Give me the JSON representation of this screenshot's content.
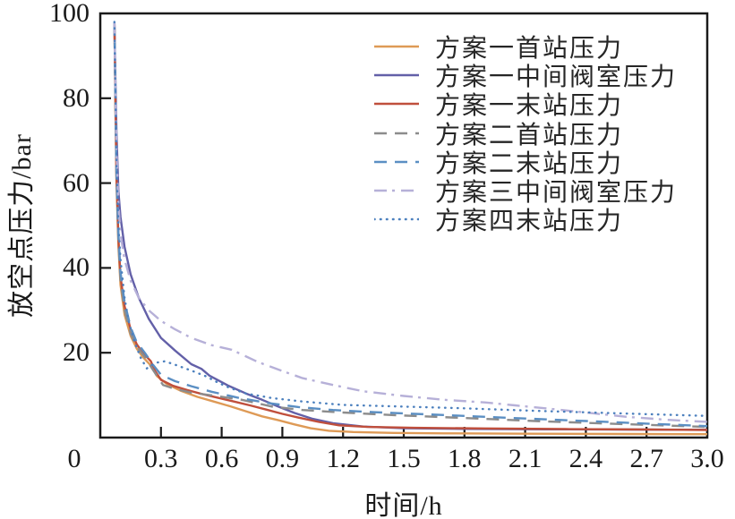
{
  "figure": {
    "background": "#ffffff",
    "axis_color": "#1a1a1a",
    "text_color": "#262626"
  },
  "chart_data": {
    "type": "line",
    "title": "",
    "xlabel": "时间/h",
    "ylabel": "放空点压力/bar",
    "xlim": [
      0,
      3.0
    ],
    "ylim": [
      0,
      100
    ],
    "grid": false,
    "legend_position": "upper-right-inside",
    "x_ticks": [
      {
        "v": 0,
        "label": "0"
      },
      {
        "v": 0.3,
        "label": "0.3"
      },
      {
        "v": 0.6,
        "label": "0.6"
      },
      {
        "v": 0.9,
        "label": "0.9"
      },
      {
        "v": 1.2,
        "label": "1.2"
      },
      {
        "v": 1.5,
        "label": "1.5"
      },
      {
        "v": 1.8,
        "label": "1.8"
      },
      {
        "v": 2.1,
        "label": "2.1"
      },
      {
        "v": 2.4,
        "label": "2.4"
      },
      {
        "v": 2.7,
        "label": "2.7"
      },
      {
        "v": 3.0,
        "label": "3.0"
      }
    ],
    "y_ticks": [
      {
        "v": 100,
        "label": "100"
      },
      {
        "v": 80,
        "label": "80"
      },
      {
        "v": 60,
        "label": "60"
      },
      {
        "v": 40,
        "label": "40"
      },
      {
        "v": 20,
        "label": "20"
      }
    ],
    "series": [
      {
        "id": "plan1-first-station",
        "label": "方案一首站压力",
        "color": "#DE9A56",
        "style": "solid",
        "points": [
          [
            0.07,
            98
          ],
          [
            0.075,
            78
          ],
          [
            0.08,
            60
          ],
          [
            0.09,
            45
          ],
          [
            0.1,
            36
          ],
          [
            0.12,
            29
          ],
          [
            0.15,
            24
          ],
          [
            0.18,
            21
          ],
          [
            0.21,
            19
          ],
          [
            0.25,
            17
          ],
          [
            0.28,
            14.5
          ],
          [
            0.33,
            12.6
          ],
          [
            0.4,
            11.0
          ],
          [
            0.48,
            9.6
          ],
          [
            0.56,
            8.5
          ],
          [
            0.64,
            7.4
          ],
          [
            0.72,
            6.2
          ],
          [
            0.8,
            5.0
          ],
          [
            0.88,
            4.1
          ],
          [
            0.96,
            3.1
          ],
          [
            1.04,
            2.2
          ],
          [
            1.13,
            1.6
          ],
          [
            1.25,
            1.3
          ],
          [
            1.45,
            1.1
          ],
          [
            1.7,
            1.0
          ],
          [
            2.1,
            0.9
          ],
          [
            2.6,
            0.85
          ],
          [
            3.0,
            0.8
          ]
        ]
      },
      {
        "id": "plan1-mid-valve",
        "label": "方案一中间阀室压力",
        "color": "#6360A8",
        "style": "solid",
        "points": [
          [
            0.07,
            98
          ],
          [
            0.075,
            85
          ],
          [
            0.08,
            72
          ],
          [
            0.09,
            58
          ],
          [
            0.1,
            52
          ],
          [
            0.12,
            45
          ],
          [
            0.15,
            38.5
          ],
          [
            0.19,
            33
          ],
          [
            0.24,
            28
          ],
          [
            0.3,
            23.5
          ],
          [
            0.37,
            20.5
          ],
          [
            0.45,
            17.3
          ],
          [
            0.5,
            16.2
          ],
          [
            0.54,
            14.6
          ],
          [
            0.63,
            12.3
          ],
          [
            0.72,
            10.4
          ],
          [
            0.8,
            8.9
          ],
          [
            0.88,
            7.3
          ],
          [
            0.96,
            5.8
          ],
          [
            1.05,
            4.4
          ],
          [
            1.15,
            3.4
          ],
          [
            1.3,
            2.6
          ],
          [
            1.5,
            2.2
          ],
          [
            1.8,
            2.05
          ],
          [
            2.2,
            1.95
          ],
          [
            2.6,
            1.9
          ],
          [
            3.0,
            1.85
          ]
        ]
      },
      {
        "id": "plan1-end-station",
        "label": "方案一末站压力",
        "color": "#C04F3C",
        "style": "solid",
        "points": [
          [
            0.07,
            98
          ],
          [
            0.075,
            80
          ],
          [
            0.08,
            62
          ],
          [
            0.09,
            47
          ],
          [
            0.1,
            38
          ],
          [
            0.12,
            31
          ],
          [
            0.15,
            25.5
          ],
          [
            0.18,
            22
          ],
          [
            0.21,
            20
          ],
          [
            0.25,
            18
          ],
          [
            0.27,
            15.8
          ],
          [
            0.3,
            13.6
          ],
          [
            0.36,
            12.2
          ],
          [
            0.43,
            11.2
          ],
          [
            0.5,
            10.3
          ],
          [
            0.58,
            9.4
          ],
          [
            0.66,
            8.5
          ],
          [
            0.74,
            7.6
          ],
          [
            0.82,
            6.6
          ],
          [
            0.9,
            5.6
          ],
          [
            0.98,
            4.7
          ],
          [
            1.08,
            3.7
          ],
          [
            1.18,
            2.9
          ],
          [
            1.32,
            2.5
          ],
          [
            1.55,
            2.3
          ],
          [
            1.9,
            2.15
          ],
          [
            2.3,
            2.0
          ],
          [
            2.7,
            1.9
          ],
          [
            3.0,
            1.8
          ]
        ]
      },
      {
        "id": "plan2-first-station",
        "label": "方案二首站压力",
        "color": "#8C8C8C",
        "style": "dashed",
        "points": [
          [
            0.07,
            98
          ],
          [
            0.08,
            61
          ],
          [
            0.09,
            46
          ],
          [
            0.1,
            37
          ],
          [
            0.12,
            30
          ],
          [
            0.15,
            24.5
          ],
          [
            0.18,
            21.5
          ],
          [
            0.22,
            19
          ],
          [
            0.26,
            16
          ],
          [
            0.31,
            12.4
          ],
          [
            0.36,
            11.6
          ],
          [
            0.45,
            10.6
          ],
          [
            0.56,
            9.9
          ],
          [
            0.7,
            8.9
          ],
          [
            0.85,
            7.3
          ],
          [
            1.0,
            6.5
          ],
          [
            1.2,
            5.9
          ],
          [
            1.45,
            5.3
          ],
          [
            1.7,
            4.8
          ],
          [
            1.95,
            4.3
          ],
          [
            2.2,
            3.8
          ],
          [
            2.45,
            3.4
          ],
          [
            2.7,
            3.0
          ],
          [
            3.0,
            2.5
          ]
        ]
      },
      {
        "id": "plan2-end-station",
        "label": "方案二末站压力",
        "color": "#5B8FC3",
        "style": "dashed",
        "points": [
          [
            0.07,
            98
          ],
          [
            0.08,
            63
          ],
          [
            0.09,
            48
          ],
          [
            0.1,
            39
          ],
          [
            0.12,
            32
          ],
          [
            0.15,
            26
          ],
          [
            0.18,
            22.5
          ],
          [
            0.22,
            20
          ],
          [
            0.26,
            17.2
          ],
          [
            0.3,
            14.8
          ],
          [
            0.37,
            13.3
          ],
          [
            0.45,
            12.1
          ],
          [
            0.55,
            10.8
          ],
          [
            0.68,
            9.4
          ],
          [
            0.82,
            8.2
          ],
          [
            0.98,
            7.2
          ],
          [
            1.15,
            6.5
          ],
          [
            1.35,
            6.0
          ],
          [
            1.6,
            5.5
          ],
          [
            1.85,
            5.0
          ],
          [
            2.1,
            4.5
          ],
          [
            2.4,
            3.9
          ],
          [
            2.7,
            3.3
          ],
          [
            3.0,
            2.7
          ]
        ]
      },
      {
        "id": "plan3-mid-valve",
        "label": "方案三中间阀室压力",
        "color": "#B6B0D8",
        "style": "dashdot",
        "points": [
          [
            0.07,
            98
          ],
          [
            0.075,
            82
          ],
          [
            0.08,
            68
          ],
          [
            0.09,
            55
          ],
          [
            0.1,
            48
          ],
          [
            0.12,
            42
          ],
          [
            0.15,
            37
          ],
          [
            0.19,
            33
          ],
          [
            0.24,
            30
          ],
          [
            0.3,
            27.5
          ],
          [
            0.37,
            25.5
          ],
          [
            0.45,
            23.5
          ],
          [
            0.55,
            21.8
          ],
          [
            0.65,
            20.7
          ],
          [
            0.78,
            17.8
          ],
          [
            0.9,
            15.7
          ],
          [
            1.0,
            14.0
          ],
          [
            1.15,
            12.4
          ],
          [
            1.3,
            10.9
          ],
          [
            1.5,
            9.8
          ],
          [
            1.7,
            8.9
          ],
          [
            1.9,
            8.3
          ],
          [
            2.05,
            7.6
          ],
          [
            2.2,
            6.9
          ],
          [
            2.4,
            5.9
          ],
          [
            2.6,
            4.9
          ],
          [
            2.8,
            4.2
          ],
          [
            3.0,
            3.7
          ]
        ]
      },
      {
        "id": "plan4-end-station",
        "label": "方案四末站压力",
        "color": "#4C80BE",
        "style": "dotted",
        "points": [
          [
            0.07,
            98
          ],
          [
            0.08,
            64
          ],
          [
            0.09,
            50
          ],
          [
            0.1,
            42
          ],
          [
            0.12,
            33
          ],
          [
            0.14,
            27.5
          ],
          [
            0.17,
            22.5
          ],
          [
            0.2,
            18.8
          ],
          [
            0.23,
            16.3
          ],
          [
            0.27,
            17.6
          ],
          [
            0.32,
            18.0
          ],
          [
            0.38,
            17.0
          ],
          [
            0.45,
            15.8
          ],
          [
            0.52,
            14.5
          ],
          [
            0.58,
            13.0
          ],
          [
            0.64,
            11.7
          ],
          [
            0.72,
            10.4
          ],
          [
            0.85,
            9.3
          ],
          [
            1.0,
            8.5
          ],
          [
            1.2,
            7.7
          ],
          [
            1.5,
            7.3
          ],
          [
            1.8,
            6.9
          ],
          [
            2.15,
            6.3
          ],
          [
            2.5,
            5.8
          ],
          [
            3.0,
            5.1
          ]
        ]
      }
    ]
  }
}
